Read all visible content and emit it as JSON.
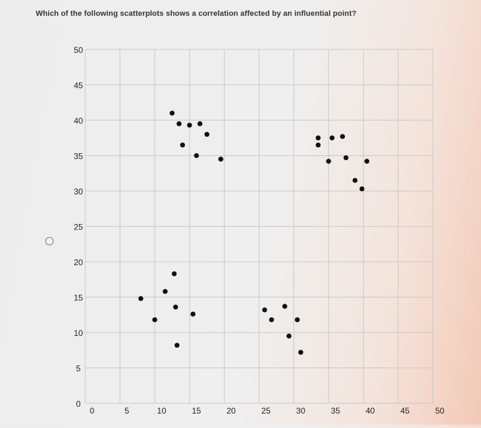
{
  "question": {
    "text": "Which of the following scatterplots shows a correlation affected by an influential point?"
  },
  "colors": {
    "point": "#111111",
    "grid": "#c9c9c9",
    "tick_label": "#222222",
    "radio_border": "#5b7fb5"
  },
  "chart_data": {
    "type": "scatter",
    "title": "",
    "xlabel": "",
    "ylabel": "",
    "xlim": [
      0,
      50
    ],
    "ylim": [
      0,
      50
    ],
    "xticks": [
      0,
      5,
      10,
      15,
      20,
      25,
      30,
      35,
      40,
      45,
      50
    ],
    "yticks": [
      0,
      5,
      10,
      15,
      20,
      25,
      30,
      35,
      40,
      45,
      50
    ],
    "grid": true,
    "series": [
      {
        "points": [
          [
            12.5,
            41
          ],
          [
            13.5,
            39.5
          ],
          [
            15,
            39.3
          ],
          [
            16.5,
            39.5
          ],
          [
            17.5,
            38
          ],
          [
            14,
            36.5
          ],
          [
            16,
            35
          ],
          [
            19.5,
            34.5
          ],
          [
            33.5,
            37.5
          ],
          [
            33.5,
            36.5
          ],
          [
            35,
            34.2
          ],
          [
            35.5,
            37.5
          ],
          [
            37,
            37.7
          ],
          [
            37.5,
            34.7
          ],
          [
            40.5,
            34.2
          ],
          [
            38.8,
            31.5
          ],
          [
            39.8,
            30.3
          ],
          [
            8,
            14.8
          ],
          [
            10,
            11.8
          ],
          [
            11.5,
            15.8
          ],
          [
            12.8,
            18.3
          ],
          [
            13,
            13.6
          ],
          [
            13.2,
            8.2
          ],
          [
            15.5,
            12.6
          ],
          [
            25.8,
            13.2
          ],
          [
            26.8,
            11.8
          ],
          [
            28.7,
            13.7
          ],
          [
            29.3,
            9.5
          ],
          [
            30.5,
            11.8
          ],
          [
            31,
            7.2
          ]
        ]
      }
    ]
  }
}
